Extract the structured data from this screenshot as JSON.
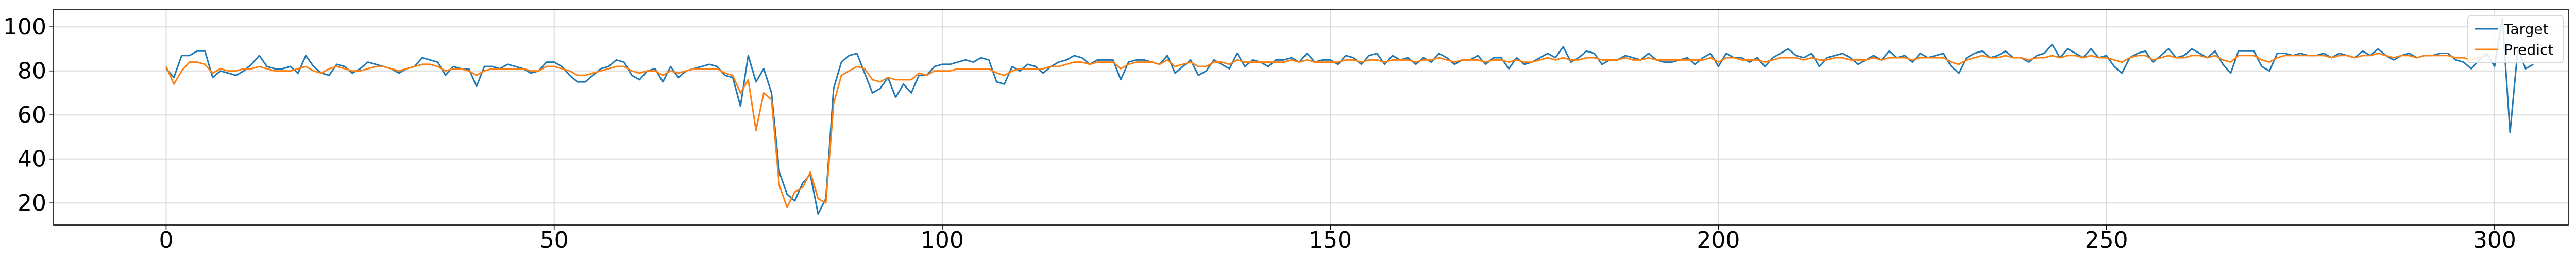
{
  "chart_data": {
    "type": "line",
    "title": "",
    "xlabel": "",
    "ylabel": "",
    "xlim": [
      -14.5,
      309.5
    ],
    "ylim": [
      10,
      108
    ],
    "x_ticks": [
      0,
      50,
      100,
      150,
      200,
      250,
      300
    ],
    "y_ticks": [
      20,
      40,
      60,
      80,
      100
    ],
    "grid": true,
    "legend": {
      "position": "top-right"
    },
    "series": [
      {
        "name": "Target",
        "color": "#1f77b4",
        "values": [
          81,
          77,
          87,
          87,
          89,
          89,
          77,
          80,
          79,
          78,
          80,
          83,
          87,
          82,
          81,
          81,
          82,
          79,
          87,
          82,
          79,
          78,
          83,
          82,
          79,
          81,
          84,
          83,
          82,
          81,
          79,
          81,
          82,
          86,
          85,
          84,
          78,
          82,
          81,
          81,
          73,
          82,
          82,
          81,
          83,
          82,
          81,
          79,
          80,
          84,
          84,
          82,
          78,
          75,
          75,
          78,
          81,
          82,
          85,
          84,
          78,
          76,
          80,
          81,
          75,
          82,
          77,
          80,
          81,
          82,
          83,
          82,
          78,
          77,
          64,
          87,
          75,
          81,
          70,
          34,
          24,
          21,
          29,
          33,
          15,
          22,
          72,
          84,
          87,
          88,
          79,
          70,
          72,
          77,
          68,
          74,
          70,
          78,
          78,
          82,
          83,
          83,
          84,
          85,
          84,
          86,
          85,
          75,
          74,
          82,
          80,
          83,
          82,
          79,
          82,
          84,
          85,
          87,
          86,
          83,
          85,
          85,
          85,
          76,
          84,
          85,
          85,
          84,
          83,
          87,
          79,
          82,
          85,
          78,
          80,
          85,
          83,
          81,
          88,
          82,
          85,
          84,
          82,
          85,
          85,
          86,
          84,
          88,
          84,
          85,
          85,
          83,
          87,
          86,
          83,
          87,
          88,
          83,
          87,
          85,
          86,
          83,
          86,
          84,
          88,
          86,
          83,
          85,
          85,
          87,
          83,
          86,
          86,
          81,
          86,
          83,
          84,
          86,
          88,
          86,
          91,
          84,
          86,
          89,
          88,
          83,
          85,
          85,
          87,
          86,
          85,
          88,
          85,
          84,
          84,
          85,
          86,
          83,
          86,
          88,
          82,
          88,
          86,
          86,
          84,
          86,
          82,
          86,
          88,
          90,
          87,
          86,
          88,
          82,
          86,
          87,
          88,
          86,
          83,
          85,
          87,
          85,
          89,
          86,
          87,
          84,
          88,
          86,
          87,
          88,
          82,
          79,
          86,
          88,
          89,
          86,
          87,
          89,
          86,
          86,
          84,
          87,
          88,
          92,
          86,
          90,
          88,
          86,
          90,
          86,
          87,
          82,
          79,
          86,
          88,
          89,
          84,
          87,
          90,
          86,
          87,
          90,
          88,
          86,
          89,
          83,
          79,
          89,
          89,
          89,
          82,
          80,
          88,
          88,
          87,
          88,
          87,
          87,
          88,
          86,
          88,
          87,
          86,
          89,
          87,
          90,
          87,
          85,
          87,
          88,
          86,
          87,
          87,
          88,
          88,
          85,
          84,
          81,
          85,
          88,
          82,
          104,
          52,
          90,
          81,
          83
        ]
      },
      {
        "name": "Predict",
        "color": "#ff7f0e",
        "values": [
          82,
          74,
          80,
          84,
          84,
          83,
          79,
          81,
          80,
          80,
          81,
          81,
          82,
          81,
          80,
          80,
          80,
          81,
          82,
          80,
          79,
          81,
          82,
          81,
          80,
          80,
          81,
          82,
          82,
          81,
          80,
          81,
          82,
          83,
          83,
          82,
          80,
          81,
          81,
          80,
          78,
          80,
          81,
          81,
          81,
          81,
          81,
          80,
          80,
          82,
          82,
          81,
          80,
          78,
          78,
          79,
          80,
          81,
          82,
          82,
          80,
          79,
          80,
          80,
          78,
          80,
          79,
          80,
          81,
          81,
          81,
          81,
          79,
          78,
          70,
          76,
          53,
          70,
          67,
          28,
          18,
          25,
          27,
          34,
          22,
          20,
          65,
          78,
          80,
          82,
          81,
          76,
          75,
          77,
          76,
          76,
          76,
          79,
          78,
          80,
          80,
          80,
          81,
          81,
          81,
          81,
          81,
          79,
          78,
          80,
          81,
          81,
          81,
          81,
          82,
          82,
          83,
          84,
          84,
          83,
          84,
          84,
          84,
          81,
          83,
          84,
          84,
          84,
          83,
          85,
          82,
          83,
          84,
          82,
          82,
          84,
          84,
          83,
          85,
          84,
          84,
          84,
          84,
          84,
          84,
          85,
          84,
          85,
          84,
          84,
          84,
          84,
          85,
          85,
          84,
          85,
          85,
          84,
          85,
          85,
          85,
          84,
          85,
          85,
          86,
          85,
          84,
          85,
          85,
          85,
          84,
          85,
          85,
          84,
          85,
          84,
          84,
          85,
          86,
          85,
          86,
          85,
          85,
          86,
          86,
          85,
          85,
          85,
          86,
          85,
          85,
          86,
          85,
          85,
          85,
          85,
          85,
          85,
          85,
          86,
          84,
          86,
          86,
          85,
          85,
          85,
          84,
          85,
          86,
          86,
          86,
          85,
          86,
          85,
          85,
          86,
          86,
          85,
          85,
          85,
          86,
          85,
          86,
          86,
          86,
          85,
          86,
          86,
          86,
          86,
          84,
          83,
          85,
          86,
          87,
          86,
          86,
          87,
          86,
          86,
          85,
          86,
          86,
          87,
          86,
          87,
          87,
          86,
          87,
          86,
          86,
          85,
          84,
          86,
          87,
          87,
          85,
          86,
          87,
          86,
          86,
          87,
          87,
          86,
          87,
          85,
          84,
          87,
          87,
          87,
          85,
          84,
          86,
          87,
          87,
          87,
          87,
          87,
          87,
          86,
          87,
          87,
          86,
          87,
          87,
          88,
          87,
          86,
          87,
          87,
          86,
          87,
          87,
          87,
          87,
          86,
          86,
          85,
          86,
          87
        ]
      }
    ]
  }
}
